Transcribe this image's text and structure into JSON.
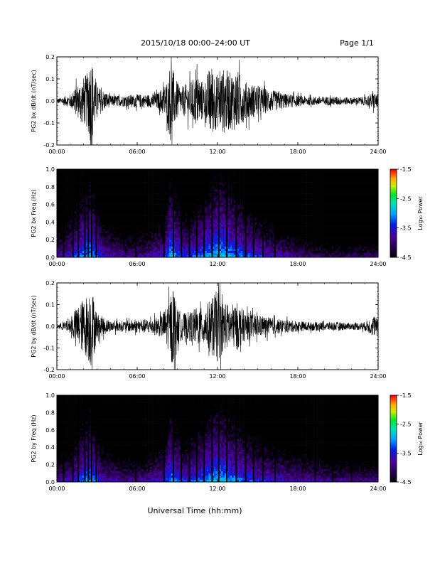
{
  "header": {
    "title": "2015/10/18  00:00–24:00 UT",
    "page": "Page 1/1"
  },
  "xlabel": "Universal Time (hh:mm)",
  "colorbar": {
    "label": "Log₁₀ Power",
    "ticks": [
      "-1.5",
      "-2.5",
      "-3.5",
      "-4.5"
    ],
    "range": [
      -4.5,
      -1.5
    ]
  },
  "chart_data": [
    {
      "type": "line",
      "panel": "bx-timeseries",
      "ylabel": "PG2 bx dB/dt (nT/sec)",
      "xlim": [
        0,
        24
      ],
      "ylim": [
        -0.2,
        0.2
      ],
      "xticks": [
        "00:00",
        "06:00",
        "12:00",
        "18:00",
        "24:00"
      ],
      "yticks": [
        "0.2",
        "0.1",
        "0.0",
        "-0.1",
        "-0.2"
      ],
      "envelope": {
        "hours": [
          0,
          1.0,
          1.6,
          2.3,
          2.55,
          3.0,
          4.0,
          5.0,
          6.0,
          7.0,
          7.6,
          8.3,
          8.5,
          8.8,
          9.2,
          10.0,
          10.5,
          11.0,
          11.5,
          12.0,
          12.5,
          13.0,
          13.5,
          14.0,
          15.0,
          16.0,
          17.0,
          18.0,
          19.0,
          20.0,
          21.0,
          22.0,
          23.0,
          23.7,
          24.0
        ],
        "amplitude": [
          0.01,
          0.03,
          0.08,
          0.13,
          0.22,
          0.07,
          0.025,
          0.025,
          0.03,
          0.03,
          0.04,
          0.1,
          0.2,
          0.11,
          0.06,
          0.09,
          0.12,
          0.08,
          0.17,
          0.12,
          0.15,
          0.13,
          0.14,
          0.09,
          0.07,
          0.05,
          0.035,
          0.025,
          0.02,
          0.02,
          0.02,
          0.015,
          0.02,
          0.04,
          0.03
        ]
      }
    },
    {
      "type": "heatmap",
      "panel": "bx-spectrogram",
      "ylabel": "PG2 bx Freq (Hz)",
      "xlim": [
        0,
        24
      ],
      "ylim": [
        0,
        1.0
      ],
      "clim": [
        -4.5,
        -1.5
      ],
      "xticks": [
        "00:00",
        "06:00",
        "12:00",
        "18:00",
        "24:00"
      ],
      "yticks": [
        "1.0",
        "0.8",
        "0.6",
        "0.4",
        "0.2",
        "0.0"
      ],
      "data_gaps_hours": [
        0.5,
        1.2,
        1.6,
        2.1,
        2.35,
        2.6,
        2.95,
        5.9,
        8.0,
        8.7,
        9.3,
        9.9,
        10.45,
        11.0,
        11.6,
        12.1,
        12.7,
        13.4,
        14.1,
        14.7,
        15.4,
        16.3
      ],
      "activity": {
        "hours": [
          0,
          1.0,
          2.0,
          2.5,
          3.5,
          5.0,
          6.5,
          8.0,
          8.5,
          9.5,
          10.5,
          11.5,
          12.0,
          12.5,
          13.5,
          14.5,
          16.0,
          18.0,
          20.0,
          22.0,
          24.0
        ],
        "log_power_low_freq": [
          -3.6,
          -3.3,
          -2.8,
          -2.6,
          -3.4,
          -3.6,
          -3.6,
          -3.3,
          -2.6,
          -3.2,
          -3.0,
          -2.7,
          -2.5,
          -2.6,
          -2.9,
          -3.1,
          -3.4,
          -3.7,
          -3.9,
          -3.9,
          -3.8
        ]
      }
    },
    {
      "type": "line",
      "panel": "by-timeseries",
      "ylabel": "PG2 by dB/dt (nT/sec)",
      "xlim": [
        0,
        24
      ],
      "ylim": [
        -0.2,
        0.2
      ],
      "xticks": [
        "00:00",
        "06:00",
        "12:00",
        "18:00",
        "24:00"
      ],
      "yticks": [
        "0.2",
        "0.1",
        "0.0",
        "-0.1",
        "-0.2"
      ],
      "envelope": {
        "hours": [
          0,
          1.0,
          1.6,
          2.3,
          2.55,
          3.0,
          4.0,
          5.0,
          6.0,
          7.0,
          7.8,
          8.4,
          8.7,
          9.0,
          9.5,
          10.0,
          10.5,
          11.0,
          11.5,
          12.0,
          12.5,
          13.0,
          13.5,
          14.0,
          15.0,
          16.0,
          17.0,
          18.0,
          19.0,
          20.0,
          21.0,
          22.0,
          23.0,
          23.7,
          24.0
        ],
        "amplitude": [
          0.01,
          0.03,
          0.1,
          0.15,
          0.2,
          0.06,
          0.025,
          0.025,
          0.03,
          0.035,
          0.05,
          0.12,
          0.2,
          0.08,
          0.06,
          0.07,
          0.09,
          0.08,
          0.13,
          0.17,
          0.11,
          0.1,
          0.11,
          0.07,
          0.05,
          0.04,
          0.03,
          0.025,
          0.02,
          0.02,
          0.02,
          0.015,
          0.02,
          0.05,
          0.03
        ]
      }
    },
    {
      "type": "heatmap",
      "panel": "by-spectrogram",
      "ylabel": "PG2 by Freq (Hz)",
      "xlim": [
        0,
        24
      ],
      "ylim": [
        0,
        1.0
      ],
      "clim": [
        -4.5,
        -1.5
      ],
      "xticks": [
        "00:00",
        "06:00",
        "12:00",
        "18:00",
        "24:00"
      ],
      "yticks": [
        "1.0",
        "0.8",
        "0.6",
        "0.4",
        "0.2",
        "0.0"
      ],
      "data_gaps_hours": [
        0.5,
        1.2,
        1.6,
        2.1,
        2.35,
        2.6,
        2.95,
        5.9,
        8.0,
        8.7,
        9.3,
        9.9,
        10.45,
        11.0,
        11.6,
        12.1,
        12.7,
        13.4,
        14.1,
        14.7,
        15.4,
        16.3,
        19.3,
        20.6,
        22.0
      ],
      "activity": {
        "hours": [
          0,
          1.0,
          2.0,
          2.5,
          3.5,
          5.0,
          6.5,
          8.0,
          8.5,
          9.5,
          10.5,
          11.5,
          12.0,
          12.5,
          13.5,
          14.5,
          16.0,
          18.0,
          20.0,
          22.0,
          24.0
        ],
        "log_power_low_freq": [
          -3.6,
          -3.4,
          -2.9,
          -2.7,
          -3.4,
          -3.6,
          -3.6,
          -3.3,
          -2.7,
          -3.2,
          -3.0,
          -2.7,
          -2.6,
          -2.7,
          -2.9,
          -3.1,
          -3.3,
          -3.5,
          -3.6,
          -3.7,
          -3.7
        ]
      }
    }
  ]
}
